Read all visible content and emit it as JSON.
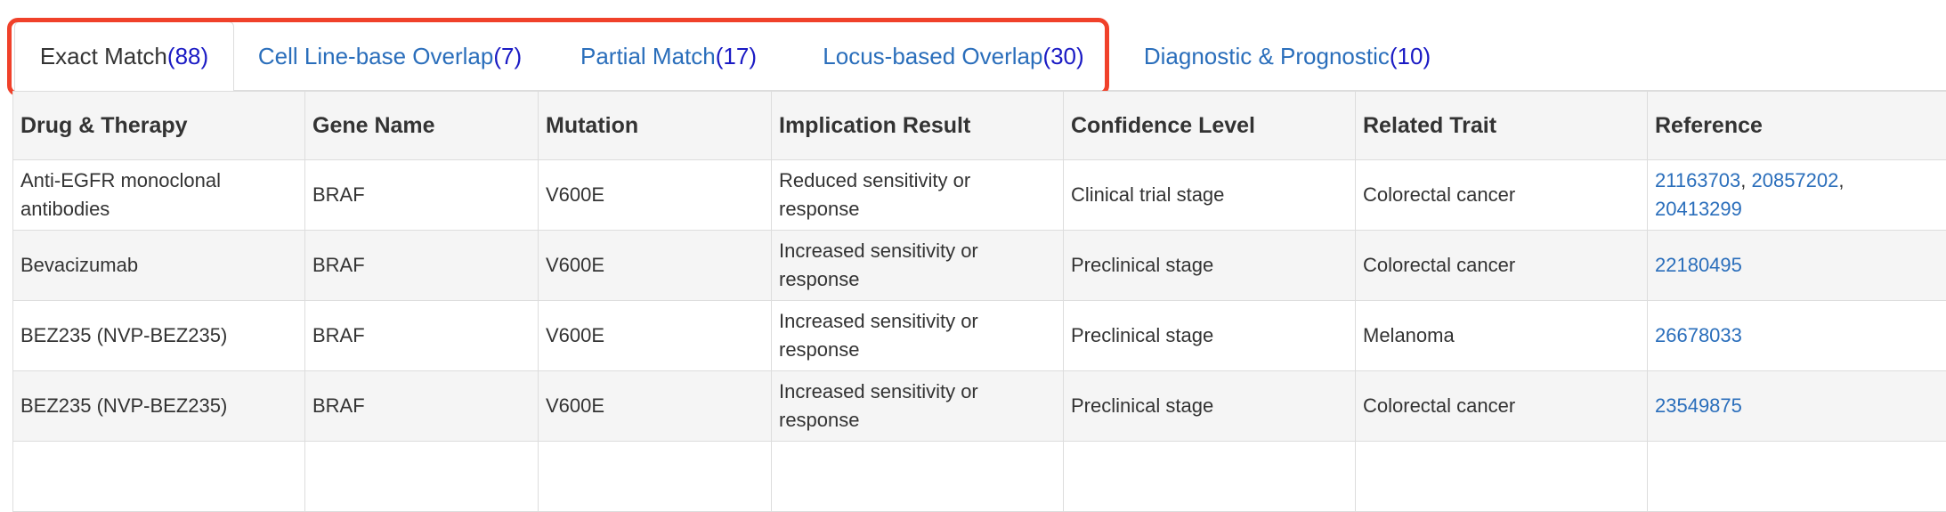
{
  "tabs": [
    {
      "label": "Exact Match",
      "count": "(88)",
      "active": true
    },
    {
      "label": "Cell Line-base Overlap",
      "count": "(7)",
      "active": false
    },
    {
      "label": "Partial Match",
      "count": "(17)",
      "active": false
    },
    {
      "label": "Locus-based Overlap",
      "count": "(30)",
      "active": false
    },
    {
      "label": "Diagnostic & Prognostic",
      "count": "(10)",
      "active": false
    }
  ],
  "table": {
    "headers": [
      "Drug & Therapy",
      "Gene Name",
      "Mutation",
      "Implication Result",
      "Confidence Level",
      "Related Trait",
      "Reference"
    ],
    "rows": [
      {
        "drug": "Anti-EGFR monoclonal antibodies",
        "gene": "BRAF",
        "mutation": "V600E",
        "implication": "Reduced sensitivity or response",
        "confidence": "Clinical trial stage",
        "trait": "Colorectal cancer",
        "refs": [
          "21163703",
          "20857202",
          "20413299"
        ]
      },
      {
        "drug": "Bevacizumab",
        "gene": "BRAF",
        "mutation": "V600E",
        "implication": "Increased sensitivity or response",
        "confidence": "Preclinical stage",
        "trait": "Colorectal cancer",
        "refs": [
          "22180495"
        ]
      },
      {
        "drug": "BEZ235 (NVP-BEZ235)",
        "gene": "BRAF",
        "mutation": "V600E",
        "implication": "Increased sensitivity or response",
        "confidence": "Preclinical stage",
        "trait": "Melanoma",
        "refs": [
          "26678033"
        ]
      },
      {
        "drug": "BEZ235 (NVP-BEZ235)",
        "gene": "BRAF",
        "mutation": "V600E",
        "implication": "Increased sensitivity or response",
        "confidence": "Preclinical stage",
        "trait": "Colorectal cancer",
        "refs": [
          "23549875"
        ]
      },
      {
        "drug": "",
        "gene": "",
        "mutation": "",
        "implication": "",
        "confidence": "",
        "trait": "",
        "refs": []
      }
    ]
  },
  "colors": {
    "tab_link": "#2a6ebb",
    "tab_count": "#1a1ac4",
    "highlight_border": "#f0412a",
    "row_stripe": "#f5f5f5"
  }
}
